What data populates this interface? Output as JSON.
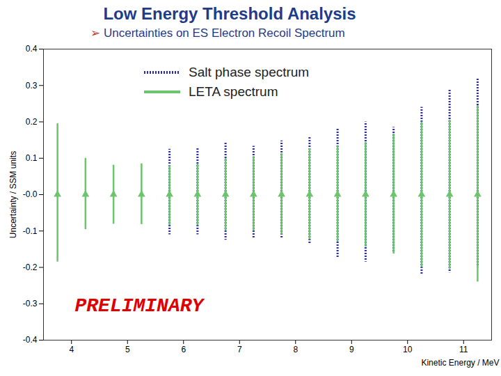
{
  "chart_data": {
    "type": "errorbar",
    "title": "Low Energy Threshold Analysis",
    "subtitle": "➢ Uncertainties on ES Electron Recoil Spectrum",
    "x_label": "Kinetic Energy / MeV",
    "y_label": "Uncertainty / SSM units",
    "xlim": [
      3.5,
      11.5
    ],
    "xticks": [
      4,
      5,
      6,
      7,
      8,
      9,
      10,
      11
    ],
    "ylim": [
      -0.4,
      0.4
    ],
    "yticks": [
      {
        "value": -0.4,
        "label": "-0.4"
      },
      {
        "value": -0.3,
        "label": "-0.3"
      },
      {
        "value": -0.2,
        "label": "-0.2"
      },
      {
        "value": -0.1,
        "label": "-0.1"
      },
      {
        "value": 0,
        "label": "-0.0"
      },
      {
        "value": 0.1,
        "label": "0.1"
      },
      {
        "value": 0.2,
        "label": "0.2"
      },
      {
        "value": 0.3,
        "label": "0.3"
      },
      {
        "value": 0.4,
        "label": "0.4"
      }
    ],
    "grid": false,
    "legend": "top",
    "annotations": [
      {
        "text": "PRELIMINARY"
      }
    ],
    "series": [
      {
        "name": "Salt phase spectrum",
        "color": "#2b2bb8",
        "line_style": "dotted",
        "x": [
          5.75,
          6.25,
          6.75,
          7.25,
          7.75,
          8.25,
          8.75,
          9.25,
          9.75,
          10.25,
          10.75,
          11.25
        ],
        "values": [
          0,
          0,
          0,
          0,
          0,
          0,
          0,
          0,
          0,
          0,
          0,
          0
        ],
        "upper": [
          0.125,
          0.13,
          0.145,
          0.133,
          0.148,
          0.16,
          0.183,
          0.2,
          0.185,
          0.24,
          0.29,
          0.32
        ],
        "lower": [
          -0.11,
          -0.11,
          -0.125,
          -0.12,
          -0.12,
          -0.135,
          -0.175,
          -0.185,
          -0.16,
          -0.22,
          -0.215,
          -0.2
        ]
      },
      {
        "name": "LETA spectrum",
        "color": "#6cc46c",
        "line_style": "solid",
        "marker": "triangle",
        "x": [
          3.75,
          4.25,
          4.75,
          5.25,
          5.75,
          6.25,
          6.75,
          7.25,
          7.75,
          8.25,
          8.75,
          9.25,
          9.75,
          10.25,
          10.75,
          11.25
        ],
        "values": [
          0,
          0,
          0,
          0,
          0,
          0,
          0,
          0,
          0,
          0,
          0,
          0,
          0,
          0,
          0,
          0
        ],
        "upper": [
          0.195,
          0.1,
          0.081,
          0.085,
          0.08,
          0.085,
          0.1,
          0.105,
          0.113,
          0.126,
          0.133,
          0.144,
          0.167,
          0.2,
          0.205,
          0.245
        ],
        "lower": [
          -0.185,
          -0.096,
          -0.081,
          -0.082,
          -0.085,
          -0.085,
          -0.1,
          -0.1,
          -0.11,
          -0.124,
          -0.13,
          -0.144,
          -0.163,
          -0.2,
          -0.205,
          -0.24
        ]
      }
    ]
  }
}
